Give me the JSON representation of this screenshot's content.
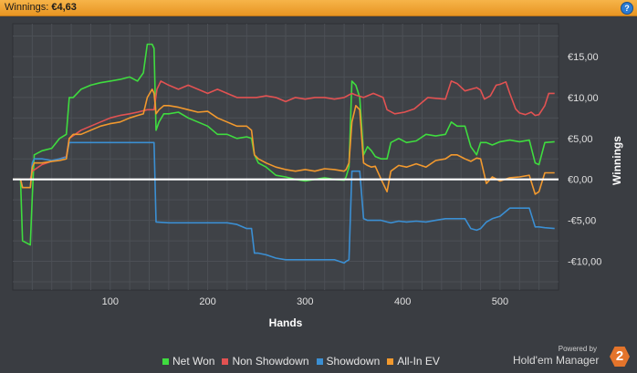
{
  "header": {
    "label": "Winnings:",
    "value": "€4,63",
    "help_glyph": "?"
  },
  "brand": {
    "powered_by": "Powered by",
    "name": "Hold'em Manager",
    "logo_number": "2"
  },
  "chart_data": {
    "type": "line",
    "title": "",
    "xlabel": "Hands",
    "ylabel": "Winnings",
    "xlim": [
      0,
      560
    ],
    "ylim": [
      -13.5,
      19
    ],
    "xticks": [
      100,
      200,
      300,
      400,
      500
    ],
    "yticks": [
      {
        "value": 15,
        "label": "€15,00"
      },
      {
        "value": 10,
        "label": "€10,00"
      },
      {
        "value": 5,
        "label": "€5,00"
      },
      {
        "value": 0,
        "label": "€0,00"
      },
      {
        "value": -5,
        "label": "-€5,00"
      },
      {
        "value": -10,
        "label": "-€10,00"
      }
    ],
    "grid": true,
    "legend_position": "bottom",
    "series": [
      {
        "name": "Net Won",
        "color": "#3fdc3f",
        "points": [
          [
            0,
            0
          ],
          [
            8,
            0
          ],
          [
            10,
            -7.5
          ],
          [
            18,
            -8
          ],
          [
            20,
            -2
          ],
          [
            22,
            3
          ],
          [
            30,
            3.5
          ],
          [
            40,
            3.8
          ],
          [
            48,
            5
          ],
          [
            55,
            5.5
          ],
          [
            58,
            10
          ],
          [
            62,
            10
          ],
          [
            70,
            11
          ],
          [
            80,
            11.5
          ],
          [
            90,
            11.8
          ],
          [
            100,
            12
          ],
          [
            110,
            12.2
          ],
          [
            120,
            12.5
          ],
          [
            128,
            12
          ],
          [
            134,
            13
          ],
          [
            138,
            16.5
          ],
          [
            143,
            16.5
          ],
          [
            145,
            16
          ],
          [
            147,
            6
          ],
          [
            150,
            7
          ],
          [
            155,
            8
          ],
          [
            160,
            8
          ],
          [
            170,
            8.2
          ],
          [
            180,
            7.5
          ],
          [
            190,
            7
          ],
          [
            200,
            6.5
          ],
          [
            210,
            5.5
          ],
          [
            220,
            5.5
          ],
          [
            230,
            5
          ],
          [
            240,
            5.2
          ],
          [
            245,
            5
          ],
          [
            248,
            3
          ],
          [
            252,
            2
          ],
          [
            260,
            1.5
          ],
          [
            270,
            0.5
          ],
          [
            280,
            0.3
          ],
          [
            290,
            0
          ],
          [
            300,
            -0.2
          ],
          [
            310,
            0
          ],
          [
            320,
            0.2
          ],
          [
            330,
            0
          ],
          [
            340,
            -0.1
          ],
          [
            342,
            0.3
          ],
          [
            345,
            1.5
          ],
          [
            348,
            12
          ],
          [
            352,
            11.5
          ],
          [
            356,
            10
          ],
          [
            360,
            3
          ],
          [
            364,
            4
          ],
          [
            368,
            3.5
          ],
          [
            372,
            2.8
          ],
          [
            378,
            2.5
          ],
          [
            384,
            2.5
          ],
          [
            388,
            4.5
          ],
          [
            396,
            5
          ],
          [
            404,
            4.5
          ],
          [
            414,
            4.7
          ],
          [
            424,
            5.5
          ],
          [
            434,
            5.3
          ],
          [
            444,
            5.5
          ],
          [
            450,
            7
          ],
          [
            456,
            6.5
          ],
          [
            464,
            6.5
          ],
          [
            470,
            4
          ],
          [
            476,
            3
          ],
          [
            480,
            4.5
          ],
          [
            486,
            4.5
          ],
          [
            492,
            4.2
          ],
          [
            500,
            4.6
          ],
          [
            510,
            4.8
          ],
          [
            520,
            4.6
          ],
          [
            530,
            4.8
          ],
          [
            536,
            2
          ],
          [
            540,
            1.8
          ],
          [
            546,
            4.5
          ],
          [
            556,
            4.6
          ]
        ]
      },
      {
        "name": "Non Showdown",
        "color": "#e25252",
        "points": [
          [
            0,
            0
          ],
          [
            18,
            0
          ],
          [
            20,
            1
          ],
          [
            30,
            1.8
          ],
          [
            40,
            2.2
          ],
          [
            48,
            2.5
          ],
          [
            55,
            2.8
          ],
          [
            58,
            5
          ],
          [
            70,
            6
          ],
          [
            80,
            6.5
          ],
          [
            90,
            7
          ],
          [
            100,
            7.5
          ],
          [
            110,
            7.8
          ],
          [
            120,
            8
          ],
          [
            128,
            8.2
          ],
          [
            138,
            8.5
          ],
          [
            145,
            8.5
          ],
          [
            148,
            11
          ],
          [
            152,
            12
          ],
          [
            160,
            11.5
          ],
          [
            170,
            11
          ],
          [
            180,
            11.5
          ],
          [
            190,
            11
          ],
          [
            200,
            10.5
          ],
          [
            210,
            11
          ],
          [
            220,
            10.5
          ],
          [
            230,
            10
          ],
          [
            240,
            10
          ],
          [
            250,
            10
          ],
          [
            260,
            10.2
          ],
          [
            270,
            10
          ],
          [
            280,
            9.5
          ],
          [
            290,
            10
          ],
          [
            300,
            9.8
          ],
          [
            310,
            10
          ],
          [
            320,
            10
          ],
          [
            330,
            9.8
          ],
          [
            340,
            10
          ],
          [
            348,
            10.5
          ],
          [
            352,
            10.3
          ],
          [
            360,
            10
          ],
          [
            370,
            10.5
          ],
          [
            380,
            10
          ],
          [
            384,
            8.5
          ],
          [
            392,
            8
          ],
          [
            402,
            8.2
          ],
          [
            412,
            8.6
          ],
          [
            420,
            9.4
          ],
          [
            426,
            10
          ],
          [
            434,
            9.9
          ],
          [
            444,
            9.8
          ],
          [
            450,
            12
          ],
          [
            456,
            11.7
          ],
          [
            464,
            10.8
          ],
          [
            470,
            11
          ],
          [
            476,
            11.2
          ],
          [
            480,
            10.9
          ],
          [
            484,
            9.8
          ],
          [
            490,
            10.2
          ],
          [
            496,
            11.5
          ],
          [
            500,
            11.6
          ],
          [
            506,
            11.9
          ],
          [
            510,
            10.5
          ],
          [
            516,
            8.6
          ],
          [
            520,
            8.1
          ],
          [
            526,
            7.9
          ],
          [
            532,
            8.2
          ],
          [
            536,
            7.8
          ],
          [
            540,
            7.9
          ],
          [
            546,
            9
          ],
          [
            550,
            10.5
          ],
          [
            556,
            10.5
          ]
        ]
      },
      {
        "name": "Showdown",
        "color": "#3b8fd3",
        "points": [
          [
            0,
            0
          ],
          [
            8,
            0
          ],
          [
            10,
            -1
          ],
          [
            18,
            -1
          ],
          [
            20,
            2
          ],
          [
            22,
            2.5
          ],
          [
            30,
            2.5
          ],
          [
            40,
            2.3
          ],
          [
            48,
            2.5
          ],
          [
            55,
            2.7
          ],
          [
            58,
            4.5
          ],
          [
            62,
            4.5
          ],
          [
            80,
            4.5
          ],
          [
            100,
            4.5
          ],
          [
            120,
            4.5
          ],
          [
            145,
            4.5
          ],
          [
            147,
            -5.2
          ],
          [
            160,
            -5.3
          ],
          [
            180,
            -5.3
          ],
          [
            200,
            -5.3
          ],
          [
            210,
            -5.3
          ],
          [
            220,
            -5.3
          ],
          [
            230,
            -5.5
          ],
          [
            240,
            -6
          ],
          [
            245,
            -6
          ],
          [
            248,
            -9
          ],
          [
            252,
            -9
          ],
          [
            260,
            -9.2
          ],
          [
            270,
            -9.6
          ],
          [
            280,
            -9.8
          ],
          [
            290,
            -9.8
          ],
          [
            300,
            -9.8
          ],
          [
            310,
            -9.8
          ],
          [
            320,
            -9.8
          ],
          [
            330,
            -9.8
          ],
          [
            340,
            -10.2
          ],
          [
            342,
            -10
          ],
          [
            345,
            -9.8
          ],
          [
            348,
            1
          ],
          [
            352,
            1
          ],
          [
            356,
            1
          ],
          [
            360,
            -4.8
          ],
          [
            364,
            -5
          ],
          [
            368,
            -5
          ],
          [
            372,
            -5
          ],
          [
            378,
            -5
          ],
          [
            384,
            -5.2
          ],
          [
            388,
            -5.3
          ],
          [
            396,
            -5.1
          ],
          [
            404,
            -5.2
          ],
          [
            414,
            -5.1
          ],
          [
            424,
            -5.2
          ],
          [
            434,
            -5
          ],
          [
            444,
            -4.8
          ],
          [
            450,
            -4.8
          ],
          [
            456,
            -4.8
          ],
          [
            464,
            -4.8
          ],
          [
            470,
            -6
          ],
          [
            476,
            -6.2
          ],
          [
            480,
            -6
          ],
          [
            486,
            -5.2
          ],
          [
            492,
            -4.8
          ],
          [
            500,
            -4.5
          ],
          [
            510,
            -3.5
          ],
          [
            520,
            -3.5
          ],
          [
            530,
            -3.5
          ],
          [
            536,
            -5.8
          ],
          [
            540,
            -5.8
          ],
          [
            546,
            -5.9
          ],
          [
            556,
            -6
          ]
        ]
      },
      {
        "name": "All-In EV",
        "color": "#f2992e",
        "points": [
          [
            0,
            0
          ],
          [
            8,
            0
          ],
          [
            10,
            -1
          ],
          [
            18,
            -1
          ],
          [
            20,
            1.5
          ],
          [
            22,
            2
          ],
          [
            30,
            2
          ],
          [
            40,
            2.2
          ],
          [
            48,
            2.3
          ],
          [
            55,
            2.5
          ],
          [
            58,
            5
          ],
          [
            62,
            5.5
          ],
          [
            70,
            5.5
          ],
          [
            80,
            6
          ],
          [
            90,
            6.5
          ],
          [
            100,
            6.8
          ],
          [
            110,
            7
          ],
          [
            120,
            7.5
          ],
          [
            128,
            7.8
          ],
          [
            134,
            8
          ],
          [
            138,
            10
          ],
          [
            143,
            11
          ],
          [
            145,
            10.5
          ],
          [
            147,
            8
          ],
          [
            150,
            8.5
          ],
          [
            155,
            9
          ],
          [
            160,
            9
          ],
          [
            170,
            8.8
          ],
          [
            180,
            8.5
          ],
          [
            190,
            8.2
          ],
          [
            200,
            8.3
          ],
          [
            210,
            7.5
          ],
          [
            220,
            7
          ],
          [
            230,
            6.5
          ],
          [
            240,
            6.5
          ],
          [
            245,
            6
          ],
          [
            248,
            3
          ],
          [
            252,
            2.5
          ],
          [
            260,
            2
          ],
          [
            270,
            1.5
          ],
          [
            280,
            1.2
          ],
          [
            290,
            1
          ],
          [
            300,
            1.2
          ],
          [
            310,
            1
          ],
          [
            320,
            1.3
          ],
          [
            330,
            1.2
          ],
          [
            340,
            1
          ],
          [
            342,
            1.2
          ],
          [
            345,
            2
          ],
          [
            348,
            7
          ],
          [
            352,
            9
          ],
          [
            356,
            8.5
          ],
          [
            360,
            2
          ],
          [
            364,
            1.7
          ],
          [
            368,
            1.5
          ],
          [
            372,
            1.6
          ],
          [
            378,
            0
          ],
          [
            384,
            -1.5
          ],
          [
            388,
            1
          ],
          [
            396,
            1.7
          ],
          [
            404,
            1.5
          ],
          [
            414,
            1.9
          ],
          [
            424,
            1.5
          ],
          [
            434,
            2.3
          ],
          [
            444,
            2.5
          ],
          [
            450,
            3
          ],
          [
            456,
            3
          ],
          [
            464,
            2.5
          ],
          [
            470,
            2.2
          ],
          [
            476,
            2.6
          ],
          [
            480,
            2.5
          ],
          [
            486,
            -0.5
          ],
          [
            492,
            0.3
          ],
          [
            500,
            -0.2
          ],
          [
            510,
            0.2
          ],
          [
            520,
            0.3
          ],
          [
            530,
            0.5
          ],
          [
            536,
            -1.8
          ],
          [
            540,
            -1.5
          ],
          [
            546,
            0.8
          ],
          [
            556,
            0.8
          ]
        ]
      }
    ]
  }
}
